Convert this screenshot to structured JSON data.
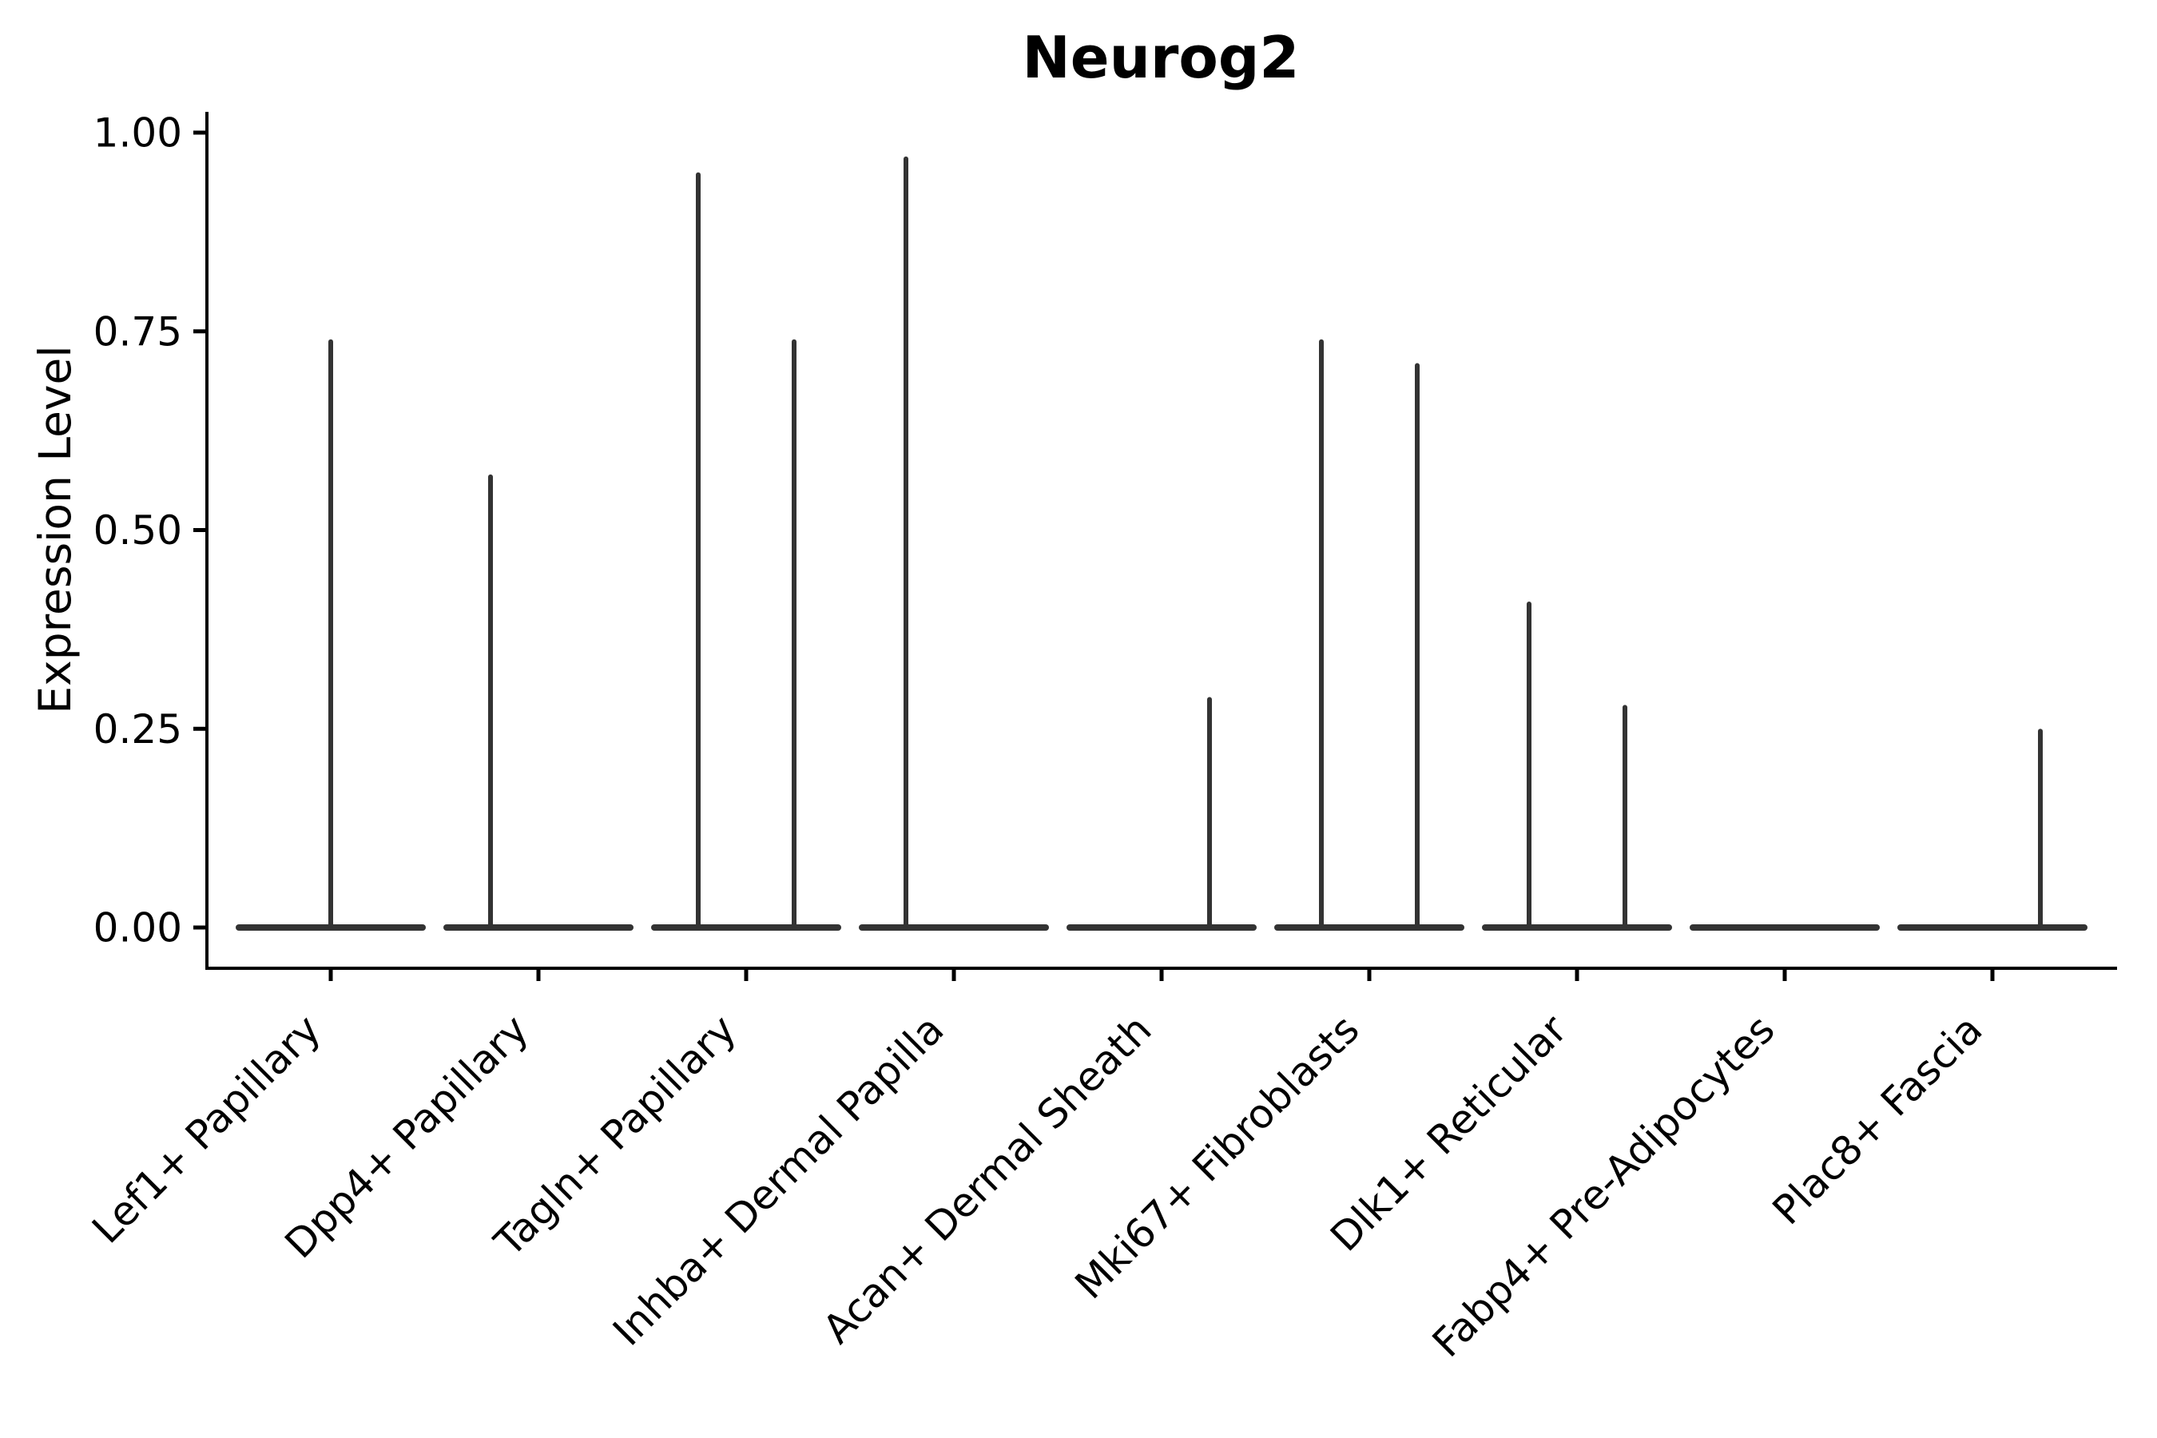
{
  "figure": {
    "title": "Neurog2",
    "y_axis_label": "Expression Level"
  },
  "chart_data": {
    "type": "violin",
    "title": "Neurog2",
    "xlabel": "",
    "ylabel": "Expression Level",
    "ylim": [
      -0.05,
      1.02
    ],
    "grid": false,
    "legend": null,
    "background_color": "#ffffff",
    "violin_color": "#333333",
    "axis_color": "#000000",
    "ytick_values": [
      0.0,
      0.25,
      0.5,
      0.75,
      1.0
    ],
    "ytick_labels": [
      "0.00",
      "0.25",
      "0.50",
      "0.75",
      "1.00"
    ],
    "categories": [
      "Lef1+ Papillary",
      "Dpp4+ Papillary",
      "Tagln+ Papillary",
      "Inhba+ Dermal Papilla",
      "Acan+ Dermal Sheath",
      "Mki67+ Fibroblasts",
      "Dlk1+ Reticular",
      "Fabp4+ Pre-Adipocytes",
      "Plac8+ Fascia"
    ],
    "violins": [
      {
        "category": "Lef1+ Papillary",
        "baseline_value": 0.0,
        "sub_violins": [
          {
            "position": "center",
            "max_expression": 0.74
          }
        ]
      },
      {
        "category": "Dpp4+ Papillary",
        "baseline_value": 0.0,
        "sub_violins": [
          {
            "position": "left",
            "max_expression": 0.57
          }
        ]
      },
      {
        "category": "Tagln+ Papillary",
        "baseline_value": 0.0,
        "sub_violins": [
          {
            "position": "left",
            "max_expression": 0.95
          },
          {
            "position": "right",
            "max_expression": 0.74
          }
        ]
      },
      {
        "category": "Inhba+ Dermal Papilla",
        "baseline_value": 0.0,
        "sub_violins": [
          {
            "position": "left",
            "max_expression": 0.97
          }
        ]
      },
      {
        "category": "Acan+ Dermal Sheath",
        "baseline_value": 0.0,
        "sub_violins": [
          {
            "position": "right",
            "max_expression": 0.29
          }
        ]
      },
      {
        "category": "Mki67+ Fibroblasts",
        "baseline_value": 0.0,
        "sub_violins": [
          {
            "position": "left",
            "max_expression": 0.74
          },
          {
            "position": "right",
            "max_expression": 0.71
          }
        ]
      },
      {
        "category": "Dlk1+ Reticular",
        "baseline_value": 0.0,
        "sub_violins": [
          {
            "position": "left",
            "max_expression": 0.41
          },
          {
            "position": "right",
            "max_expression": 0.28
          }
        ]
      },
      {
        "category": "Fabp4+ Pre-Adipocytes",
        "baseline_value": 0.0,
        "sub_violins": []
      },
      {
        "category": "Plac8+ Fascia",
        "baseline_value": 0.0,
        "sub_violins": [
          {
            "position": "right",
            "max_expression": 0.25
          }
        ]
      }
    ]
  }
}
